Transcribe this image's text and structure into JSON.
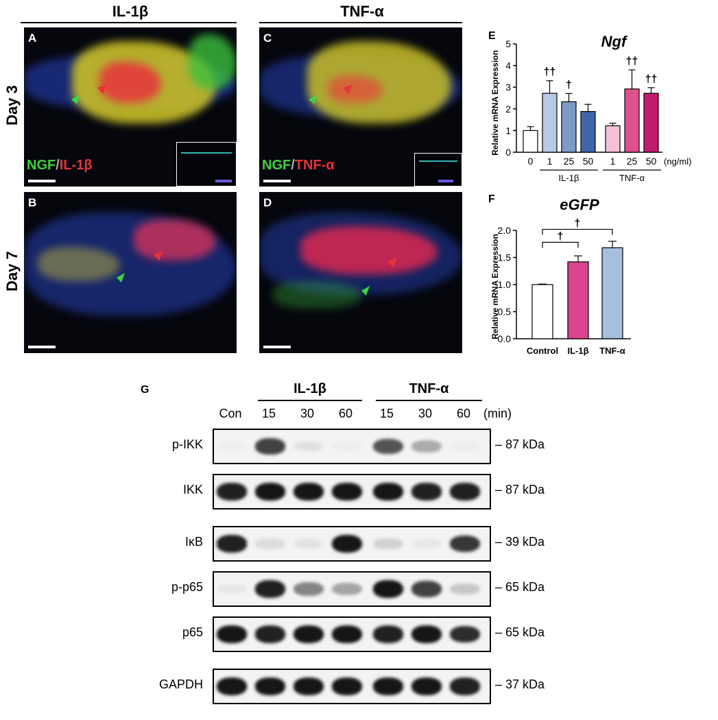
{
  "headers": {
    "left": "IL-1β",
    "right": "TNF-α"
  },
  "micro": {
    "panels": [
      {
        "id": "A",
        "label": "A"
      },
      {
        "id": "B",
        "label": "B"
      },
      {
        "id": "C",
        "label": "C"
      },
      {
        "id": "D",
        "label": "D"
      }
    ],
    "days": [
      "Day 3",
      "Day 7"
    ],
    "stain_left": {
      "ngf": "NGF",
      "sep": "/",
      "cyto": "IL-1β"
    },
    "stain_right": {
      "ngf": "NGF",
      "sep": "/",
      "cyto": "TNF-α"
    },
    "colors": {
      "green": "#3fd23f",
      "red": "#e8333a",
      "blue": "#2a4bd8"
    }
  },
  "chart_data": [
    {
      "panel": "E",
      "type": "bar",
      "title": "Ngf",
      "ylabel": "Relative mRNA Expression",
      "xlabel": "(ng/ml)",
      "ylim": [
        0,
        5
      ],
      "yticks": [
        0,
        1,
        2,
        3,
        4,
        5
      ],
      "categories": [
        "0",
        "1",
        "25",
        "50",
        "1",
        "25",
        "50"
      ],
      "groups": [
        {
          "label": "IL-1β",
          "from": 1,
          "to": 3
        },
        {
          "label": "TNF-α",
          "from": 4,
          "to": 6
        }
      ],
      "values": [
        1.0,
        2.72,
        2.33,
        1.88,
        1.22,
        2.92,
        2.72
      ],
      "errors": [
        0.18,
        0.58,
        0.38,
        0.33,
        0.12,
        0.88,
        0.26
      ],
      "significance": [
        "",
        "††",
        "†",
        "",
        "",
        "††",
        "††"
      ],
      "colors": [
        "#ffffff",
        "#b8c9e4",
        "#7b9ac4",
        "#3f67a8",
        "#f4bfd9",
        "#e0508f",
        "#c21a6e"
      ]
    },
    {
      "panel": "F",
      "type": "bar",
      "title": "eGFP",
      "ylabel": "Relative mRNA Expression",
      "ylim": [
        0,
        2.0
      ],
      "yticks": [
        "0.0",
        "0.5",
        "1.0",
        "1.5",
        "2.0"
      ],
      "categories": [
        "Control",
        "IL-1β",
        "TNF-α"
      ],
      "values": [
        1.0,
        1.42,
        1.68
      ],
      "errors": [
        0.01,
        0.11,
        0.12
      ],
      "colors": [
        "#ffffff",
        "#d9458e",
        "#a7bedf"
      ],
      "brackets": [
        {
          "from": 0,
          "to": 1,
          "label": "†"
        },
        {
          "from": 0,
          "to": 2,
          "label": "†"
        }
      ]
    }
  ],
  "western": {
    "panel": "G",
    "groups": [
      {
        "label": "IL-1β"
      },
      {
        "label": "TNF-α"
      }
    ],
    "lanes": [
      "Con",
      "15",
      "30",
      "60",
      "15",
      "30",
      "60"
    ],
    "unit": "(min)",
    "blots": [
      {
        "name": "p-IKK",
        "kda": "87 kDa",
        "intensity": [
          0.02,
          0.8,
          0.08,
          0.03,
          0.72,
          0.32,
          0.03
        ]
      },
      {
        "name": "IKK",
        "kda": "87 kDa",
        "intensity": [
          0.95,
          1.0,
          1.0,
          1.0,
          1.0,
          0.95,
          0.95
        ]
      },
      {
        "name": "IκB",
        "kda": "39 kDa",
        "intensity": [
          0.95,
          0.1,
          0.07,
          1.0,
          0.15,
          0.05,
          0.85
        ]
      },
      {
        "name": "p-p65",
        "kda": "65 kDa",
        "intensity": [
          0.05,
          0.95,
          0.5,
          0.35,
          1.0,
          0.8,
          0.2
        ]
      },
      {
        "name": "p65",
        "kda": "65 kDa",
        "intensity": [
          1.0,
          0.95,
          1.0,
          1.0,
          0.95,
          1.0,
          0.9
        ]
      },
      {
        "name": "GAPDH",
        "kda": "37 kDa",
        "intensity": [
          1.0,
          1.0,
          1.0,
          1.0,
          1.0,
          1.0,
          0.95
        ]
      }
    ]
  }
}
